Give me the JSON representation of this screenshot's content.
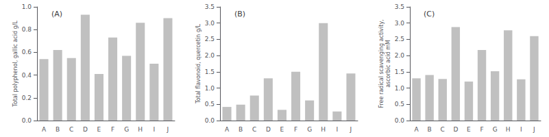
{
  "chart_data": [
    {
      "type": "bar",
      "title": "(A)",
      "categories": [
        "A",
        "B",
        "C",
        "D",
        "E",
        "F",
        "G",
        "H",
        "I",
        "J"
      ],
      "values": [
        0.54,
        0.62,
        0.55,
        0.93,
        0.41,
        0.73,
        0.57,
        0.86,
        0.5,
        0.9
      ],
      "ylabel": "Total polyphenol, gallic acid g/L",
      "ylim": [
        0,
        1.0
      ],
      "yticks": [
        {
          "value": 0,
          "label": "0.0"
        },
        0.2,
        0.4,
        0.6,
        0.8,
        {
          "value": 1,
          "label": "1.0"
        }
      ],
      "color": "#c0c0c0",
      "grid": false
    },
    {
      "type": "bar",
      "title": "(B)",
      "categories": [
        "A",
        "B",
        "C",
        "D",
        "E",
        "F",
        "G",
        "H",
        "I",
        "J"
      ],
      "values": [
        0.42,
        0.49,
        0.77,
        1.3,
        0.33,
        1.5,
        0.62,
        3.0,
        0.28,
        1.45
      ],
      "ylabel": "Total flavonoid, quercetin g/L",
      "ylim": [
        0,
        3.5
      ],
      "yticks": [
        {
          "value": 0,
          "label": "0.0"
        },
        0.5,
        {
          "value": 1,
          "label": "1.0"
        },
        1.5,
        {
          "value": 2,
          "label": "2.0"
        },
        2.5,
        {
          "value": 3,
          "label": "3.0"
        },
        3.5
      ],
      "color": "#c0c0c0",
      "grid": false
    },
    {
      "type": "bar",
      "title": "(C)",
      "categories": [
        "A",
        "B",
        "C",
        "D",
        "E",
        "F",
        "G",
        "H",
        "I",
        "J"
      ],
      "values": [
        1.3,
        1.4,
        1.28,
        2.88,
        1.2,
        2.17,
        1.52,
        2.78,
        1.27,
        2.6
      ],
      "ylabel": "Free radical scavenging activity,\nascorbic acid mM",
      "ylim": [
        0,
        3.5
      ],
      "yticks": [
        {
          "value": 0,
          "label": "0.0"
        },
        0.5,
        {
          "value": 1,
          "label": "1.0"
        },
        1.5,
        {
          "value": 2,
          "label": "2.0"
        },
        2.5,
        {
          "value": 3,
          "label": "3.0"
        },
        3.5
      ],
      "color": "#c0c0c0",
      "grid": false
    }
  ]
}
